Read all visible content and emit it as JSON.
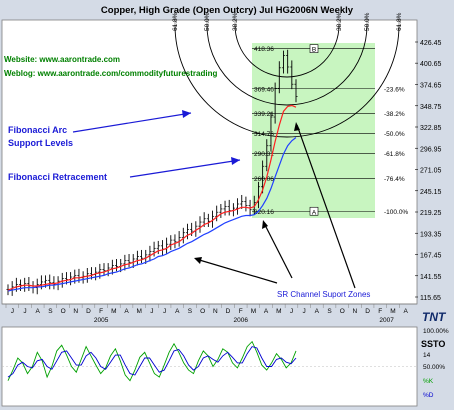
{
  "title": "Copper, High Grade (Open Outcry) Jul HG2006N Weekly",
  "website": "Website: www.aarontrade.com",
  "weblog": "Weblog: www.aarontrade.com/commodityfuturestrading",
  "annotations": {
    "fib_arc": [
      "Fibonacci Arc",
      "Support Levels"
    ],
    "fib_retracement": "Fibonacci Retracement",
    "sr_channel": "SR Channel Suport Zones"
  },
  "colors": {
    "background": "#ffffff",
    "frame": "#d4dbe6",
    "green_zone": "#c8f5c0",
    "annotation_green": "#008000",
    "annotation_blue": "#1a1ad6",
    "ma_fast": "#ff2020",
    "ma_slow": "#2040ff",
    "stoch_k": "#00a000",
    "stoch_d": "#0000d0"
  },
  "chart_data": [
    {
      "type": "ohlc",
      "title": "Copper, High Grade (Open Outcry) Jul HG2006N Weekly",
      "y_axis_labels": [
        "426.45",
        "400.65",
        "374.65",
        "348.75",
        "322.85",
        "296.95",
        "271.05",
        "245.15",
        "219.25",
        "193.35",
        "167.45",
        "141.55",
        "115.65"
      ],
      "ylim": [
        115.65,
        426.45
      ],
      "month_labels": [
        "J",
        "J",
        "A",
        "S",
        "O",
        "N",
        "D",
        "F",
        "M",
        "A",
        "M",
        "J",
        "J",
        "A",
        "S",
        "O",
        "N",
        "D",
        "F",
        "M",
        "A",
        "M",
        "J",
        "J",
        "A",
        "S",
        "O",
        "N",
        "D",
        "F",
        "M",
        "A"
      ],
      "year_labels": [
        "2005",
        "2006",
        "2007"
      ],
      "fib_retracement_prices": [
        "418.36",
        "369.46",
        "339.21",
        "314.76",
        "290.31",
        "260.06",
        "220.16"
      ],
      "fib_retracement_pcts": [
        "-23.6%",
        "-38.2%",
        "-50.0%",
        "-61.8%",
        "-76.4%",
        "-100.0%"
      ],
      "fib_arc_labels": [
        "61.8%",
        "50.0%",
        "38.2%",
        "38.2%",
        "50.0%",
        "61.8%"
      ],
      "fib_markers": [
        "B",
        "A"
      ],
      "price": [
        125,
        128,
        131,
        130,
        132,
        129,
        127,
        131,
        134,
        136,
        133,
        131,
        135,
        138,
        137,
        140,
        142,
        139,
        141,
        144,
        143,
        146,
        149,
        148,
        151,
        154,
        153,
        156,
        160,
        158,
        162,
        165,
        163,
        167,
        171,
        175,
        178,
        174,
        180,
        185,
        183,
        188,
        194,
        198,
        196,
        202,
        207,
        211,
        208,
        214,
        219,
        223,
        226,
        221,
        224,
        229,
        232,
        227,
        222,
        231,
        250,
        275,
        300,
        335,
        370,
        395,
        410,
        396,
        375,
        360
      ],
      "ma_fast": [
        124,
        126,
        128,
        129,
        130,
        130,
        129,
        129,
        130,
        131,
        132,
        132,
        133,
        135,
        136,
        137,
        139,
        139,
        140,
        141,
        142,
        144,
        145,
        146,
        148,
        150,
        151,
        153,
        155,
        156,
        158,
        160,
        161,
        163,
        166,
        169,
        172,
        173,
        175,
        179,
        181,
        183,
        187,
        191,
        193,
        197,
        200,
        204,
        206,
        209,
        213,
        217,
        219,
        220,
        221,
        223,
        225,
        225,
        224,
        226,
        234,
        246,
        262,
        283,
        305,
        325,
        342,
        348,
        349,
        347
      ],
      "ma_slow": [
        123,
        124,
        125,
        126,
        127,
        127,
        127,
        128,
        128,
        129,
        130,
        130,
        131,
        132,
        133,
        134,
        135,
        136,
        137,
        138,
        139,
        140,
        141,
        142,
        144,
        145,
        146,
        148,
        150,
        151,
        153,
        155,
        156,
        158,
        160,
        162,
        165,
        166,
        168,
        171,
        173,
        175,
        178,
        181,
        183,
        186,
        189,
        192,
        194,
        197,
        200,
        203,
        206,
        208,
        210,
        212,
        214,
        215,
        215,
        216,
        220,
        227,
        236,
        248,
        262,
        276,
        290,
        300,
        306,
        310
      ]
    },
    {
      "type": "line",
      "title": "SSTO",
      "y_axis_labels": [
        "100.00%",
        "14",
        "50.00%",
        "%K",
        "%D"
      ],
      "ylim": [
        0,
        100
      ],
      "series": [
        {
          "name": "%K",
          "values": [
            30,
            45,
            62,
            55,
            40,
            50,
            70,
            58,
            35,
            50,
            72,
            80,
            66,
            50,
            42,
            60,
            78,
            65,
            52,
            40,
            48,
            65,
            75,
            58,
            38,
            30,
            45,
            63,
            70,
            55,
            40,
            35,
            52,
            70,
            82,
            70,
            55,
            45,
            40,
            58,
            72,
            65,
            50,
            60,
            75,
            70,
            55,
            48,
            62,
            78,
            85,
            70,
            52,
            45,
            55,
            68,
            60,
            48,
            55,
            72
          ]
        },
        {
          "name": "%D",
          "values": [
            35,
            40,
            52,
            56,
            50,
            48,
            58,
            60,
            50,
            46,
            58,
            70,
            72,
            62,
            52,
            52,
            65,
            70,
            62,
            50,
            46,
            56,
            66,
            66,
            52,
            40,
            38,
            50,
            62,
            62,
            52,
            42,
            45,
            58,
            72,
            74,
            65,
            52,
            45,
            50,
            62,
            65,
            60,
            56,
            65,
            70,
            63,
            55,
            55,
            68,
            78,
            76,
            62,
            50,
            50,
            60,
            62,
            56,
            54,
            62
          ]
        }
      ]
    }
  ]
}
